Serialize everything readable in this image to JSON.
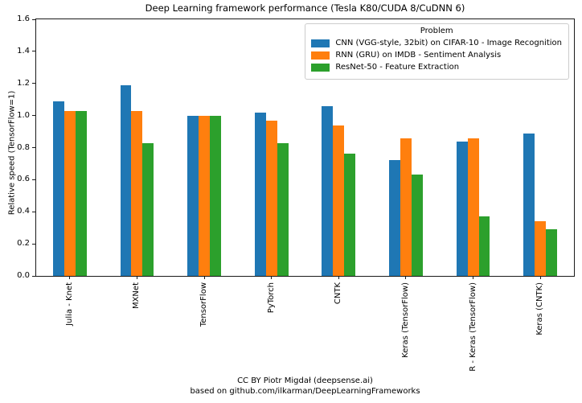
{
  "chart_data": {
    "type": "bar",
    "title": "Deep Learning framework performance (Tesla K80/CUDA 8/CuDNN 6)",
    "ylabel": "Relative speed (TensorFlow=1)",
    "xlabel": "",
    "ylim": [
      0,
      1.6
    ],
    "ytick_interval": 0.2,
    "grid": false,
    "legend": {
      "title": "Problem",
      "position": "upper-right"
    },
    "categories": [
      "Julia - Knet",
      "MXNet",
      "TensorFlow",
      "PyTorch",
      "CNTK",
      "Keras (TensorFlow)",
      "R - Keras (TensorFlow)",
      "Keras (CNTK)"
    ],
    "series": [
      {
        "name": "CNN (VGG-style, 32bit) on CIFAR-10 - Image Recognition",
        "color": "#1f77b4",
        "values": [
          1.09,
          1.19,
          1.0,
          1.02,
          1.06,
          0.72,
          0.84,
          0.89
        ]
      },
      {
        "name": "RNN (GRU) on IMDB - Sentiment Analysis",
        "color": "#ff7f0e",
        "values": [
          1.03,
          1.03,
          1.0,
          0.97,
          0.94,
          0.86,
          0.86,
          0.34
        ]
      },
      {
        "name": "ResNet-50 - Feature Extraction",
        "color": "#2ca02c",
        "values": [
          1.03,
          0.83,
          1.0,
          0.83,
          0.76,
          0.63,
          0.37,
          0.29
        ]
      }
    ],
    "footnote": [
      "CC BY Piotr Migdał (deepsense.ai)",
      "based on github.com/ilkarman/DeepLearningFrameworks"
    ]
  }
}
